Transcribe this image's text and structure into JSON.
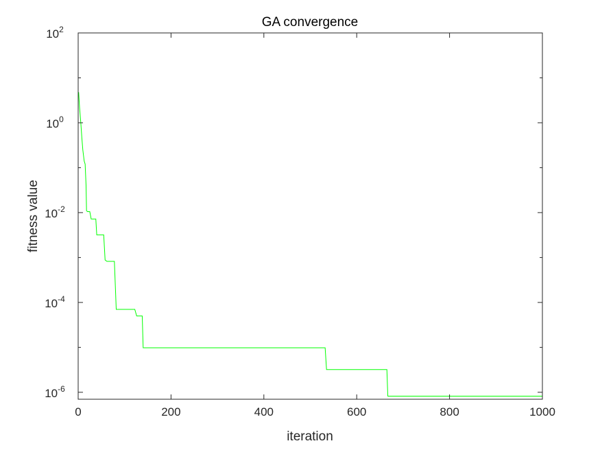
{
  "chart_data": {
    "type": "line",
    "title": "GA convergence",
    "xlabel": "iteration",
    "ylabel": "fitness value",
    "xlim": [
      0,
      1000
    ],
    "ylim": [
      7e-07,
      100
    ],
    "yscale": "log",
    "grid": false,
    "xticks": [
      0,
      200,
      400,
      600,
      800,
      1000
    ],
    "yticks": [
      {
        "value": 100,
        "base": "10",
        "exp": "2"
      },
      {
        "value": 1,
        "base": "10",
        "exp": "0"
      },
      {
        "value": 0.01,
        "base": "10",
        "exp": "-2"
      },
      {
        "value": 0.0001,
        "base": "10",
        "exp": "-4"
      },
      {
        "value": 1e-06,
        "base": "10",
        "exp": "-6"
      }
    ],
    "series": [
      {
        "color": "#00ff00",
        "x": [
          1,
          3,
          6,
          8,
          10,
          13,
          15,
          17,
          18,
          20,
          25,
          28,
          38,
          40,
          55,
          58,
          62,
          70,
          78,
          82,
          122,
          126,
          133,
          138,
          140,
          530,
          532,
          535,
          665,
          667,
          1000
        ],
        "y": [
          4.8,
          2.2,
          0.9,
          0.45,
          0.25,
          0.14,
          0.12,
          0.04,
          0.011,
          0.0105,
          0.0105,
          0.0072,
          0.0072,
          0.0032,
          0.0032,
          0.00088,
          0.00082,
          0.00082,
          0.00082,
          7e-05,
          7e-05,
          5e-05,
          5e-05,
          5e-05,
          9.8e-06,
          9.8e-06,
          9.8e-06,
          3.2e-06,
          3.2e-06,
          8.2e-07,
          8.2e-07
        ]
      }
    ]
  }
}
